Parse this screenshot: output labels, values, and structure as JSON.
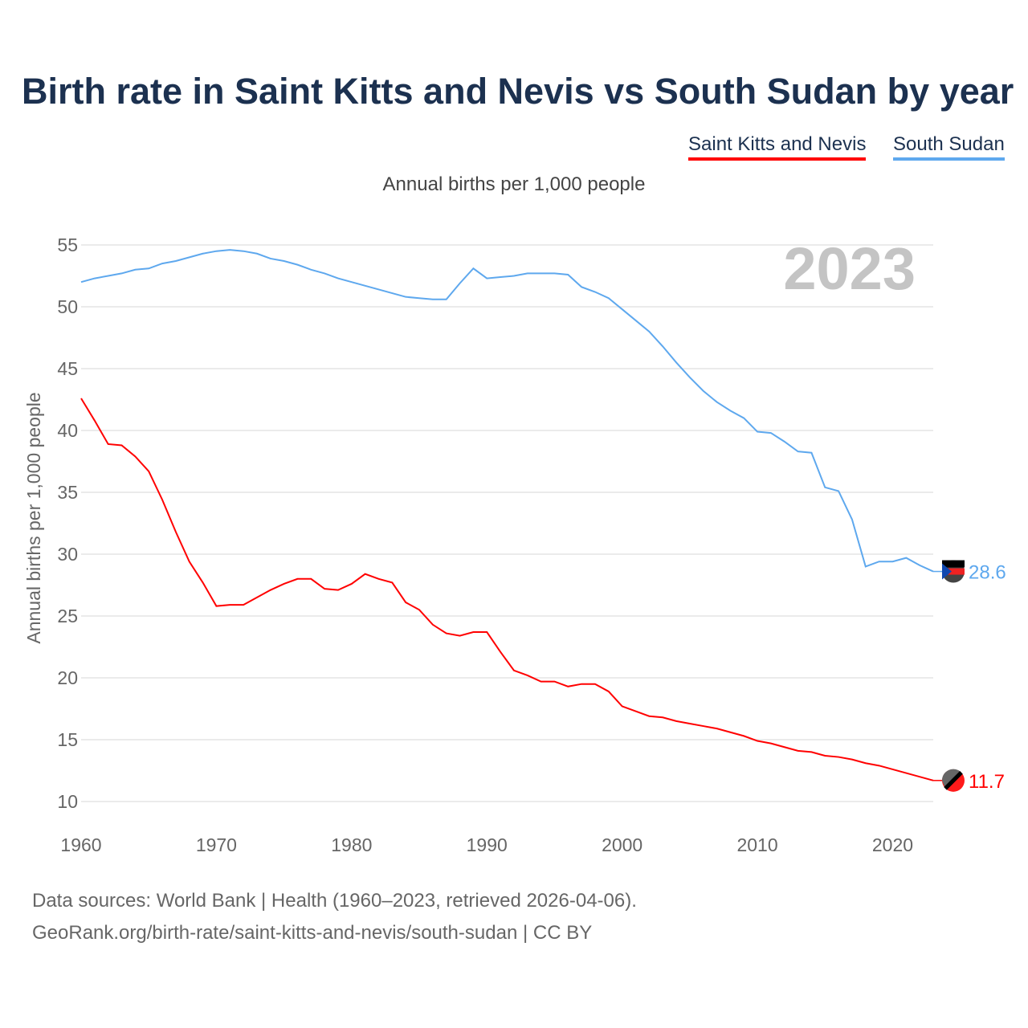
{
  "chart_data": {
    "type": "line",
    "title": "Birth rate in Saint Kitts and Nevis vs South Sudan by year",
    "subtitle": "Annual births per 1,000 people",
    "ylabel": "Annual births per 1,000 people",
    "xlabel": "",
    "year_label": "2023",
    "ylim": [
      10,
      55
    ],
    "xlim": [
      1960,
      2023
    ],
    "yticks": [
      "10",
      "15",
      "20",
      "25",
      "30",
      "35",
      "40",
      "45",
      "50",
      "55"
    ],
    "xticks": [
      "1960",
      "1970",
      "1980",
      "1990",
      "2000",
      "2010",
      "2020"
    ],
    "grid": true,
    "legend_position": "top-right",
    "series": [
      {
        "name": "Saint Kitts and Nevis",
        "color": "#ff0000",
        "end_label": "11.7",
        "values": [
          42.6,
          40.8,
          38.9,
          38.8,
          37.9,
          36.7,
          34.4,
          31.8,
          29.4,
          27.7,
          25.8,
          25.9,
          25.9,
          26.5,
          27.1,
          27.6,
          28.0,
          28.0,
          27.2,
          27.1,
          27.6,
          28.4,
          28.0,
          27.7,
          26.1,
          25.5,
          24.3,
          23.6,
          23.4,
          23.7,
          23.7,
          22.1,
          20.6,
          20.2,
          19.7,
          19.7,
          19.3,
          19.5,
          19.5,
          18.9,
          17.7,
          17.3,
          16.9,
          16.8,
          16.5,
          16.3,
          16.1,
          15.9,
          15.6,
          15.3,
          14.9,
          14.7,
          14.4,
          14.1,
          14.0,
          13.7,
          13.6,
          13.4,
          13.1,
          12.9,
          12.6,
          12.3,
          12.0,
          11.7
        ]
      },
      {
        "name": "South Sudan",
        "color": "#5ea8ee",
        "end_label": "28.6",
        "values": [
          52.0,
          52.3,
          52.5,
          52.7,
          53.0,
          53.1,
          53.5,
          53.7,
          54.0,
          54.3,
          54.5,
          54.6,
          54.5,
          54.3,
          53.9,
          53.7,
          53.4,
          53.0,
          52.7,
          52.3,
          52.0,
          51.7,
          51.4,
          51.1,
          50.8,
          50.7,
          50.6,
          50.6,
          51.9,
          53.1,
          52.3,
          52.4,
          52.5,
          52.7,
          52.7,
          52.7,
          52.6,
          51.6,
          51.2,
          50.7,
          49.8,
          48.9,
          48.0,
          46.8,
          45.5,
          44.3,
          43.2,
          42.3,
          41.6,
          41.0,
          39.9,
          39.8,
          39.1,
          38.3,
          38.2,
          35.4,
          35.1,
          32.8,
          29.0,
          29.4,
          29.4,
          29.7,
          29.1,
          28.6
        ]
      }
    ]
  },
  "footer": {
    "line1": "Data sources: World Bank | Health (1960–2023, retrieved 2026-04-06).",
    "line2": "GeoRank.org/birth-rate/saint-kitts-and-nevis/south-sudan | CC BY"
  }
}
